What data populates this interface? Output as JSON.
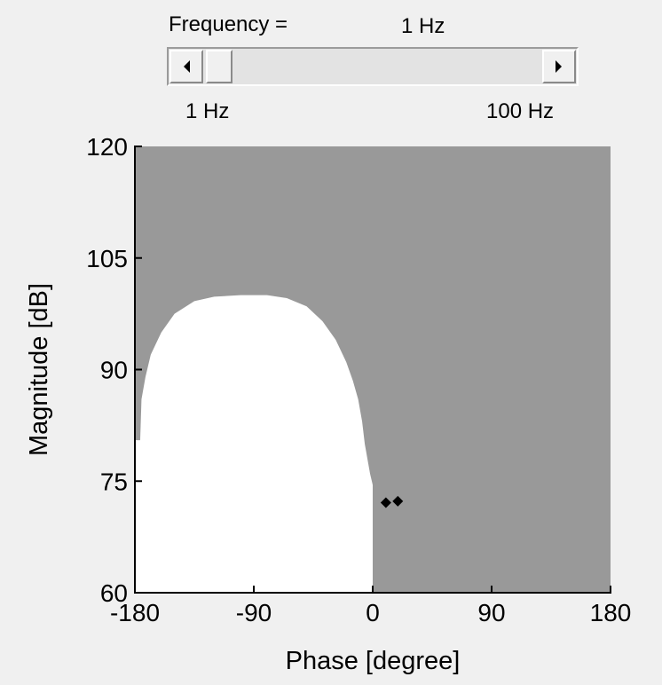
{
  "slider": {
    "label": "Frequency =",
    "value_text": "1 Hz",
    "min_label": "1 Hz",
    "max_label": "100 Hz",
    "position": 0.0
  },
  "chart_data": {
    "type": "scatter",
    "xlabel": "Phase [degree]",
    "ylabel": "Magnitude [dB]",
    "xlim": [
      -180,
      180
    ],
    "ylim": [
      60,
      120
    ],
    "xticks": [
      -180,
      -90,
      0,
      90,
      180
    ],
    "xtick_labels": [
      "-180",
      "-90",
      "0",
      "90",
      "180"
    ],
    "yticks": [
      60,
      75,
      90,
      105,
      120
    ],
    "ytick_labels": [
      "60",
      "75",
      "90",
      "105",
      "120"
    ],
    "grid": false,
    "background_color": "#999999",
    "region": {
      "fill": "#ffffff",
      "boundary": [
        [
          -180,
          60
        ],
        [
          -180,
          80.5
        ],
        [
          -176,
          80.5
        ],
        [
          -175,
          86
        ],
        [
          -172,
          89
        ],
        [
          -168,
          92
        ],
        [
          -160,
          95
        ],
        [
          -150,
          97.5
        ],
        [
          -135,
          99.2
        ],
        [
          -120,
          99.8
        ],
        [
          -100,
          100
        ],
        [
          -90,
          100
        ],
        [
          -80,
          100
        ],
        [
          -65,
          99.6
        ],
        [
          -50,
          98.5
        ],
        [
          -38,
          96.5
        ],
        [
          -28,
          94
        ],
        [
          -20,
          91
        ],
        [
          -15,
          88.5
        ],
        [
          -11,
          86
        ],
        [
          -8,
          83
        ],
        [
          -6,
          80
        ],
        [
          -4,
          78
        ],
        [
          -2,
          76
        ],
        [
          0,
          74.5
        ],
        [
          0,
          60
        ]
      ]
    },
    "series": [
      {
        "marker": "diamond",
        "color": "#000000",
        "x": [
          10,
          19
        ],
        "y": [
          72.1,
          72.3
        ]
      }
    ]
  }
}
